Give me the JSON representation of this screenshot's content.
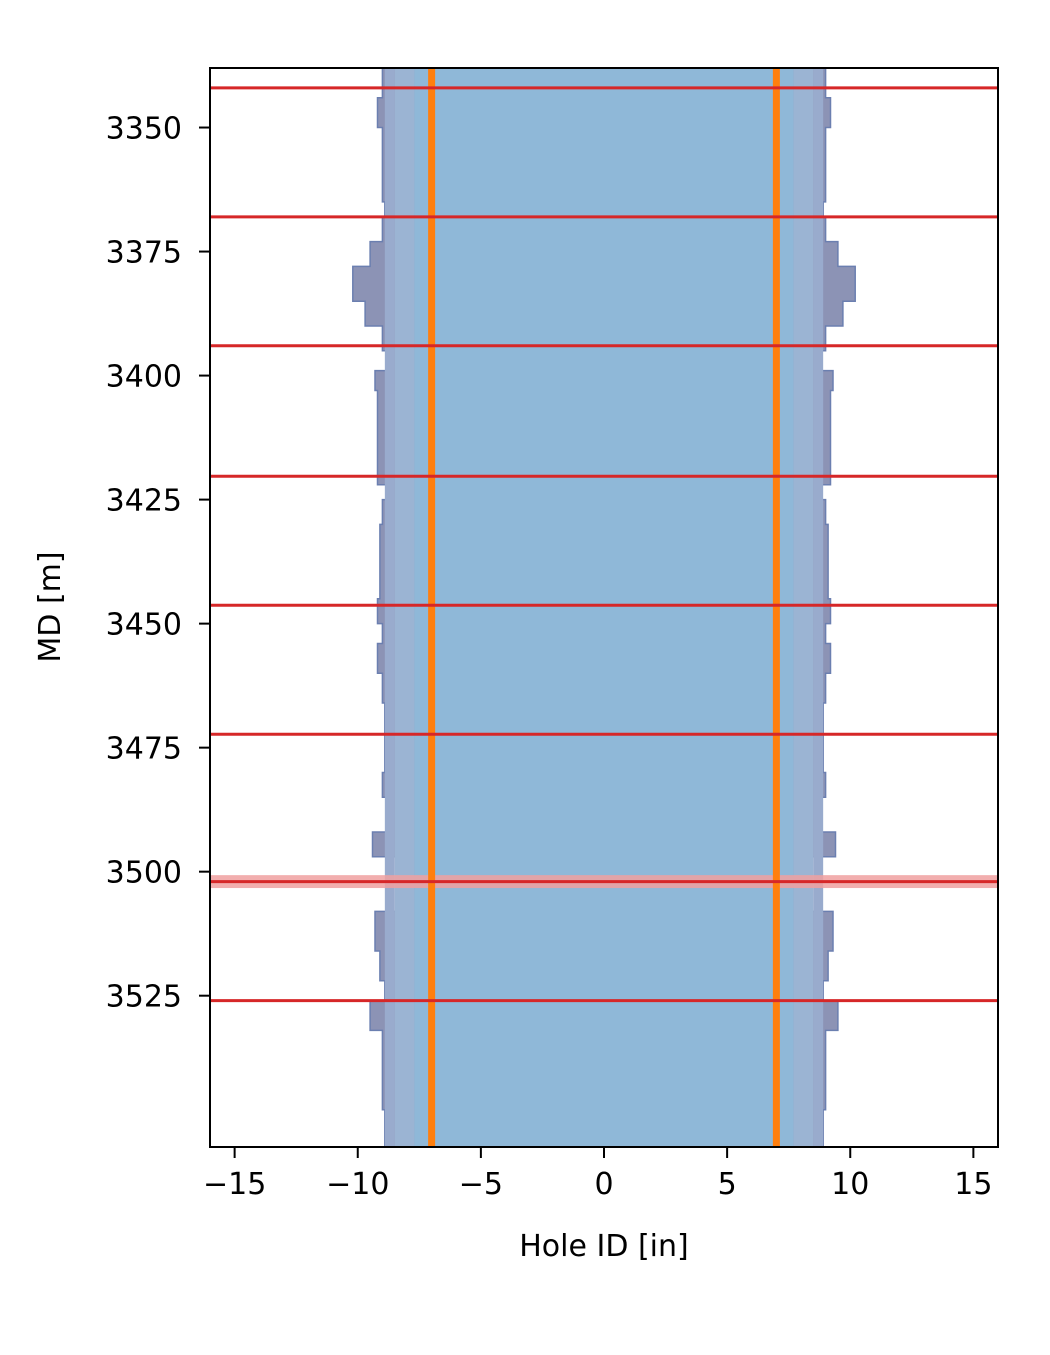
{
  "chart_data": {
    "type": "area",
    "title": "",
    "xlabel": "Hole ID [in]",
    "ylabel": "MD [m]",
    "xlim": [
      -16,
      16
    ],
    "ylim": [
      3555.5,
      3338
    ],
    "y_inverted": true,
    "grid": false,
    "x_ticks": [
      -15,
      -10,
      -5,
      0,
      5,
      10,
      15
    ],
    "x_tick_labels": [
      "−15",
      "−10",
      "−5",
      "0",
      "5",
      "10",
      "15"
    ],
    "y_ticks": [
      3350,
      3375,
      3400,
      3425,
      3450,
      3475,
      3500,
      3525
    ],
    "y_tick_labels": [
      "3350",
      "3375",
      "3400",
      "3425",
      "3450",
      "3475",
      "3500",
      "3525"
    ],
    "caliper_profile": {
      "color": "#8c93b5",
      "edge_color": "#6b7fb0",
      "md": [
        3338,
        3341.5,
        3344,
        3346,
        3350,
        3365,
        3368,
        3373,
        3378,
        3385,
        3390,
        3395,
        3399,
        3403,
        3419,
        3422,
        3425,
        3430,
        3445,
        3450,
        3454,
        3460,
        3466,
        3475,
        3480,
        3485,
        3492,
        3497,
        3500,
        3502,
        3508,
        3516,
        3522,
        3526,
        3532,
        3537,
        3548,
        3555.5
      ],
      "radius_in": [
        9.0,
        9.0,
        9.2,
        9.2,
        9.0,
        8.9,
        9.0,
        9.5,
        10.2,
        9.7,
        9.0,
        8.8,
        9.3,
        9.2,
        9.2,
        8.8,
        9.0,
        9.1,
        9.2,
        9.0,
        9.2,
        9.0,
        8.9,
        8.9,
        9.0,
        8.8,
        9.4,
        8.0,
        7.9,
        8.0,
        9.3,
        9.1,
        8.9,
        9.5,
        9.0,
        9.0,
        8.9,
        8.9
      ]
    },
    "bands": [
      {
        "inner_in": 0.0,
        "outer_in": 7.7,
        "color": "#8fb8d8"
      },
      {
        "inner_in": 7.7,
        "outer_in": 8.5,
        "color": "#9bb4d3"
      },
      {
        "inner_in": 8.5,
        "outer_in": 8.9,
        "color": "#99abcd"
      }
    ],
    "casing_lines": {
      "offset_in": 7.0,
      "color": "#ff7f0e"
    },
    "horizontal_lines": {
      "color": "#d62728",
      "md": [
        3342,
        3368,
        3394,
        3420.3,
        3446.3,
        3472.3,
        3502,
        3526
      ]
    },
    "highlight": {
      "md": 3502,
      "half_width": 1.3,
      "color": "#f0a0a0"
    }
  }
}
